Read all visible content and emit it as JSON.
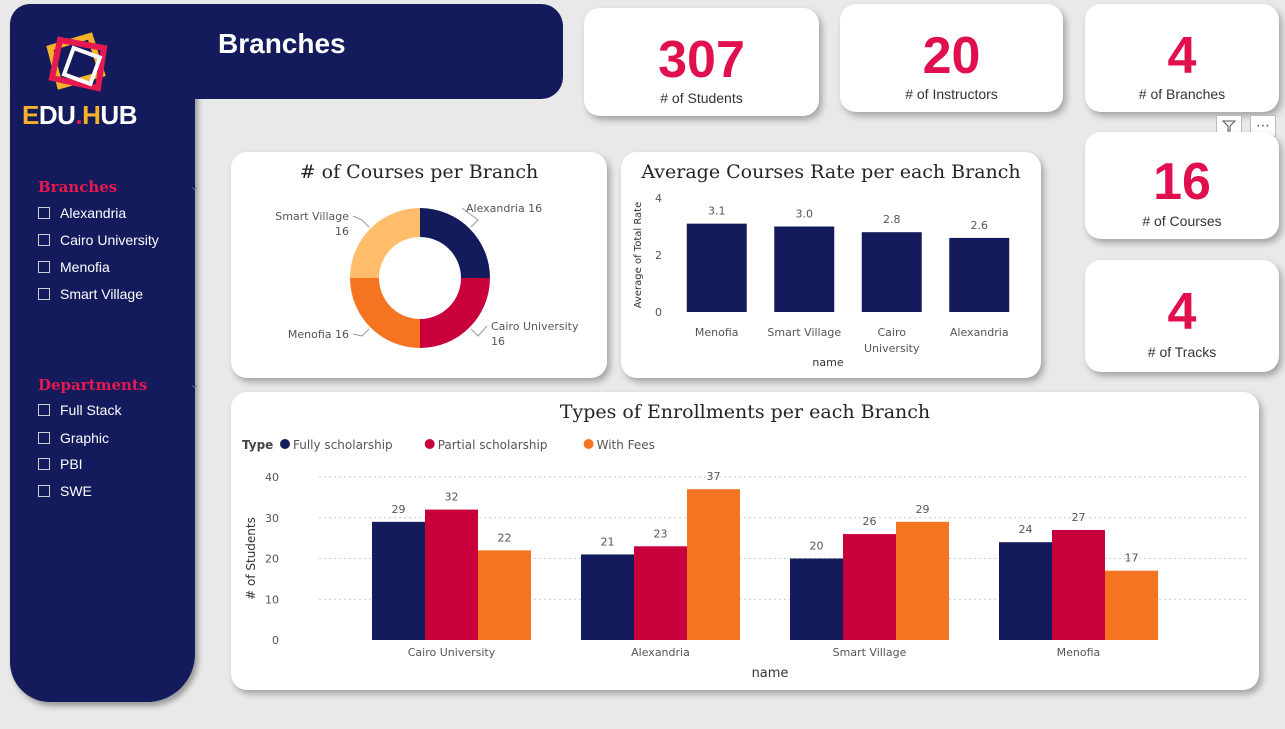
{
  "header": {
    "title": "Branches"
  },
  "logo": {
    "part1": "E",
    "part2": "DU",
    "dot": ".",
    "part3": "H",
    "part4": "UB"
  },
  "slicers": {
    "branches": {
      "title": "Branches",
      "items": [
        "Alexandria",
        "Cairo University",
        "Menofia",
        "Smart Village"
      ]
    },
    "departments": {
      "title": "Departments",
      "items": [
        "Full Stack",
        "Graphic",
        "PBI",
        "SWE"
      ]
    }
  },
  "kpis": {
    "students": {
      "value": "307",
      "label": "# of Students"
    },
    "instructors": {
      "value": "20",
      "label": "# of Instructors"
    },
    "branches": {
      "value": "4",
      "label": "# of Branches"
    },
    "courses": {
      "value": "16",
      "label": "# of Courses"
    },
    "tracks": {
      "value": "4",
      "label": "# of Tracks"
    }
  },
  "colors": {
    "navy": "#131b5c",
    "crimson": "#c8003c",
    "orange": "#f47421",
    "peach": "#ffbd6b",
    "kpi": "#e0104f"
  },
  "icons": {
    "filter": "filter-icon",
    "more": "more-options-icon"
  },
  "chart_data": [
    {
      "type": "pie",
      "title": "# of Courses per Branch",
      "categories": [
        "Alexandria",
        "Cairo University",
        "Menofia",
        "Smart Village"
      ],
      "values": [
        16,
        16,
        16,
        16
      ],
      "labels": [
        "Alexandria 16",
        "Cairo University 16",
        "Menofia 16",
        "Smart Village 16"
      ],
      "colors": [
        "#131b5c",
        "#c8003c",
        "#f47421",
        "#ffbd6b"
      ]
    },
    {
      "type": "bar",
      "title": "Average Courses Rate per each Branch",
      "categories": [
        "Menofia",
        "Smart Village",
        "Cairo University",
        "Alexandria"
      ],
      "values": [
        3.1,
        3.0,
        2.8,
        2.6
      ],
      "value_labels": [
        "3.1",
        "3.0",
        "2.8",
        "2.6"
      ],
      "xlabel": "name",
      "ylabel": "Average of Total Rate",
      "ylim": [
        0,
        4
      ],
      "yticks": [
        0,
        2,
        4
      ],
      "color": "#131b5c"
    },
    {
      "type": "bar",
      "title": "Types of Enrollments per each Branch",
      "legend_title": "Type",
      "categories": [
        "Cairo University",
        "Alexandria",
        "Smart Village",
        "Menofia"
      ],
      "series": [
        {
          "name": "Fully scholarship",
          "values": [
            29,
            21,
            20,
            24
          ],
          "color": "#131b5c"
        },
        {
          "name": "Partial scholarship",
          "values": [
            32,
            23,
            26,
            27
          ],
          "color": "#c8003c"
        },
        {
          "name": "With Fees",
          "values": [
            22,
            37,
            29,
            17
          ],
          "color": "#f47421"
        }
      ],
      "xlabel": "name",
      "ylabel": "# of Students",
      "ylim": [
        0,
        40
      ],
      "yticks": [
        0,
        10,
        20,
        30,
        40
      ],
      "legend": "top-left",
      "grid": true
    }
  ]
}
